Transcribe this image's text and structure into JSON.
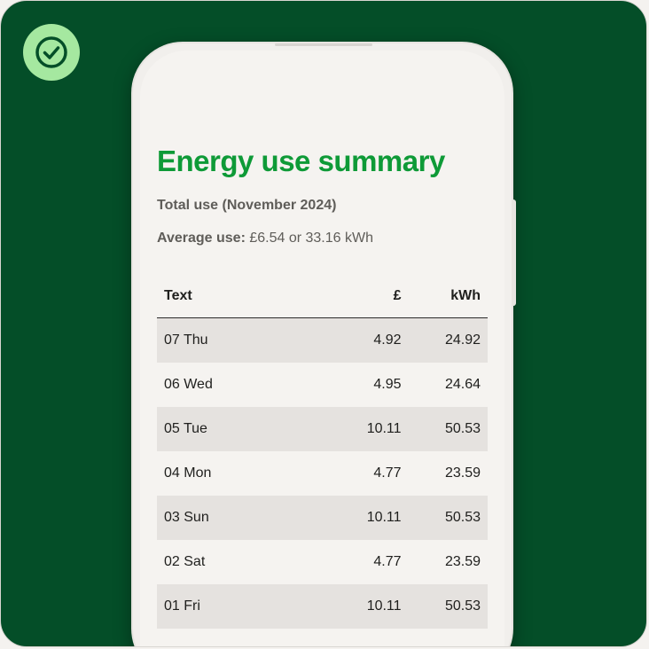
{
  "summary": {
    "title": "Energy use summary",
    "total_use": "Total use (November 2024)",
    "average_label": "Average use:",
    "average_value": " £6.54 or 33.16 kWh"
  },
  "table": {
    "headers": [
      "Text",
      "£",
      "kWh"
    ],
    "rows": [
      [
        "07 Thu",
        "4.92",
        "24.92"
      ],
      [
        "06 Wed",
        "4.95",
        "24.64"
      ],
      [
        "05 Tue",
        "10.11",
        "50.53"
      ],
      [
        "04 Mon",
        "4.77",
        "23.59"
      ],
      [
        "03 Sun",
        "10.11",
        "50.53"
      ],
      [
        "02 Sat",
        "4.77",
        "23.59"
      ],
      [
        "01 Fri",
        "10.11",
        "50.53"
      ]
    ]
  },
  "colors": {
    "background": "#044e28",
    "accent": "#0e9a37",
    "badge": "#a5e8a0"
  },
  "icons": {
    "badge": "check-circle-icon"
  }
}
